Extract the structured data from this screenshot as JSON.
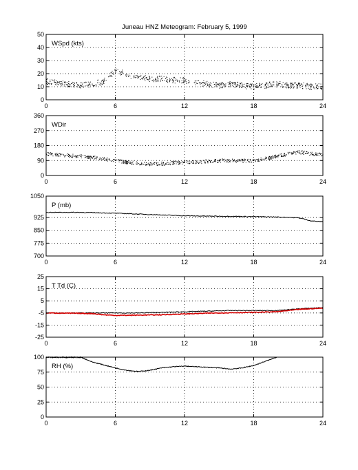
{
  "figure_title": "Juneau HNZ Meteogram:  February  5, 1999",
  "chart_data": [
    {
      "type": "scatter",
      "label": "WSpd (kts)",
      "xlim": [
        0,
        24
      ],
      "x_ticks": [
        "0",
        "6",
        "12",
        "18",
        "24"
      ],
      "ylim": [
        0,
        50
      ],
      "y_ticks": [
        "0",
        "10",
        "20",
        "30",
        "40",
        "50"
      ],
      "grid": true,
      "series": [
        {
          "color": "#000000",
          "x": [
            0,
            1,
            2,
            3,
            4,
            5,
            5.5,
            6,
            6.5,
            7,
            8,
            9,
            10,
            11,
            12,
            13,
            14,
            15,
            16,
            17,
            18,
            19,
            20,
            21,
            22,
            23,
            24
          ],
          "y": [
            14,
            13,
            12,
            11,
            12,
            14,
            18,
            22,
            21,
            19,
            17,
            16,
            16,
            15,
            15,
            13,
            12,
            11,
            12,
            11,
            10,
            11,
            12,
            11,
            11,
            10,
            10
          ]
        }
      ]
    },
    {
      "type": "scatter",
      "label": "WDir",
      "xlim": [
        0,
        24
      ],
      "x_ticks": [
        "0",
        "6",
        "12",
        "18",
        "24"
      ],
      "ylim": [
        0,
        360
      ],
      "y_ticks": [
        "0",
        "90",
        "180",
        "270",
        "360"
      ],
      "grid": true,
      "series": [
        {
          "color": "#000000",
          "x": [
            0,
            1,
            2,
            3,
            4,
            5,
            6,
            7,
            8,
            9,
            10,
            11,
            12,
            13,
            14,
            15,
            16,
            17,
            18,
            19,
            20,
            21,
            22,
            23,
            24
          ],
          "y": [
            130,
            125,
            120,
            115,
            108,
            100,
            90,
            80,
            72,
            68,
            70,
            75,
            78,
            80,
            85,
            88,
            90,
            88,
            90,
            100,
            115,
            130,
            140,
            130,
            125
          ]
        }
      ]
    },
    {
      "type": "line",
      "label": "P (mb)",
      "xlim": [
        0,
        24
      ],
      "x_ticks": [
        "0",
        "6",
        "12",
        "18",
        "24"
      ],
      "ylim": [
        700,
        1050
      ],
      "y_ticks": [
        "700",
        "775",
        "850",
        "925",
        "1050"
      ],
      "grid": true,
      "series": [
        {
          "color": "#000000",
          "x": [
            0,
            3,
            6,
            7,
            8,
            10,
            12,
            14,
            16,
            18,
            20,
            21,
            22,
            23,
            24
          ],
          "y": [
            955,
            955,
            950,
            948,
            945,
            940,
            935,
            933,
            932,
            930,
            928,
            926,
            922,
            905,
            900
          ]
        }
      ]
    },
    {
      "type": "line",
      "label": "T Td (C)",
      "xlim": [
        0,
        24
      ],
      "x_ticks": [
        "0",
        "6",
        "12",
        "18",
        "24"
      ],
      "ylim": [
        -25,
        25
      ],
      "y_ticks": [
        "-25",
        "-15",
        "-5",
        "5",
        "15",
        "25"
      ],
      "grid": true,
      "series": [
        {
          "color": "#000000",
          "x": [
            0,
            2,
            4,
            6,
            8,
            10,
            12,
            14,
            16,
            18,
            20,
            22,
            24
          ],
          "y": [
            -5,
            -5,
            -5,
            -5,
            -5,
            -4.5,
            -4,
            -3.5,
            -3,
            -3,
            -3,
            -1.5,
            -0.5
          ]
        },
        {
          "color": "#d40000",
          "x": [
            0,
            2,
            4,
            5,
            6,
            8,
            10,
            12,
            14,
            16,
            18,
            20,
            22,
            24
          ],
          "y": [
            -5,
            -5.2,
            -5.5,
            -6.5,
            -7,
            -6.8,
            -6.5,
            -5.8,
            -5.2,
            -4.8,
            -4.5,
            -4,
            -2,
            -1
          ]
        }
      ]
    },
    {
      "type": "line",
      "label": "RH (%)",
      "xlim": [
        0,
        24
      ],
      "x_ticks": [
        "0",
        "6",
        "12",
        "18",
        "24"
      ],
      "ylim": [
        0,
        100
      ],
      "y_ticks": [
        "0",
        "25",
        "50",
        "75",
        "100"
      ],
      "grid": true,
      "series": [
        {
          "color": "#000000",
          "x": [
            3,
            3.5,
            4,
            5,
            6,
            7,
            8,
            9,
            10,
            11,
            12,
            13,
            14,
            15,
            16,
            17,
            18,
            19,
            20
          ],
          "y": [
            100,
            96,
            92,
            87,
            82,
            78,
            76,
            78,
            82,
            84,
            85,
            84,
            83,
            82,
            80,
            82,
            86,
            93,
            100
          ]
        },
        {
          "color": "#000000",
          "x": [
            0,
            3
          ],
          "y": [
            100,
            100
          ]
        }
      ]
    }
  ]
}
